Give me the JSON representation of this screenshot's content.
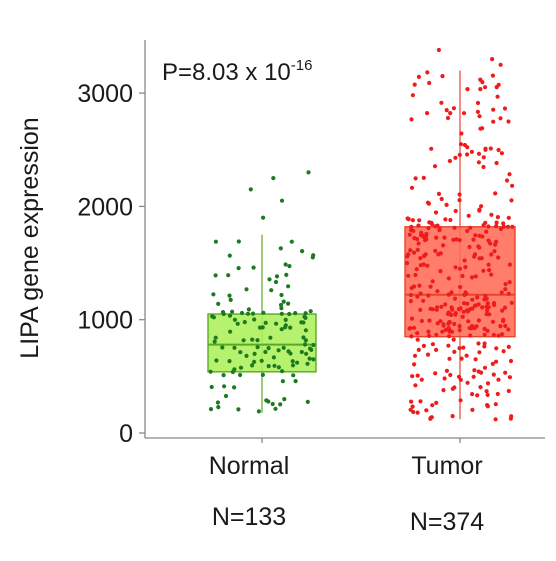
{
  "chart_data": {
    "type": "box",
    "ylabel": "LIPA gene expression",
    "yticks": [
      0,
      1000,
      2000,
      3000
    ],
    "ylim": [
      -30,
      3420
    ],
    "annotation": {
      "prefix": "P=8.03 x 10",
      "exponent": "-16"
    },
    "groups": [
      {
        "name": "Normal",
        "n_label": "N=133",
        "n": 133,
        "box_color": "#adf05a",
        "box_edge": "#5aa82a",
        "point_color": "#1e7a1e",
        "q1": 540,
        "median": 780,
        "q3": 1050,
        "whisker_low": 180,
        "whisker_high": 1750,
        "outliers": [
          1900,
          2050,
          2150,
          2250,
          2300
        ]
      },
      {
        "name": "Tumor",
        "n_label": "N=374",
        "n": 374,
        "box_color": "#ff6b55",
        "box_edge": "#e8442e",
        "point_color": "#ee1c1c",
        "q1": 850,
        "median": 1220,
        "q3": 1820,
        "whisker_low": 120,
        "whisker_high": 3200,
        "outliers": [
          3250,
          3300,
          3380
        ]
      }
    ]
  }
}
